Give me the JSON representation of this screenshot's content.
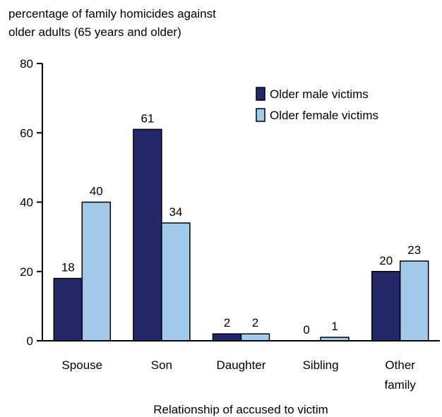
{
  "chart_data": {
    "type": "bar",
    "ylabel_lines": [
      "percentage of family homicides against",
      "older adults (65 years and older)"
    ],
    "xlabel": "Relationship of accused to victim",
    "categories": [
      [
        "Spouse"
      ],
      [
        "Son"
      ],
      [
        "Daughter"
      ],
      [
        "Sibling"
      ],
      [
        "Other",
        "family"
      ]
    ],
    "series": [
      {
        "name": "Older male victims",
        "values": [
          18,
          61,
          2,
          0,
          20
        ],
        "labels": [
          "18",
          "61",
          "2",
          "0",
          "20"
        ],
        "color": "#23286b"
      },
      {
        "name": "Older female victims",
        "values": [
          40,
          34,
          2,
          1,
          23
        ],
        "labels": [
          "40",
          "34",
          "2",
          "1",
          "23"
        ],
        "color": "#a2cbeb"
      }
    ],
    "ylim": [
      0,
      80
    ],
    "yticks": [
      0,
      20,
      40,
      60,
      80
    ],
    "grid": false,
    "legend_position": "top-right"
  }
}
